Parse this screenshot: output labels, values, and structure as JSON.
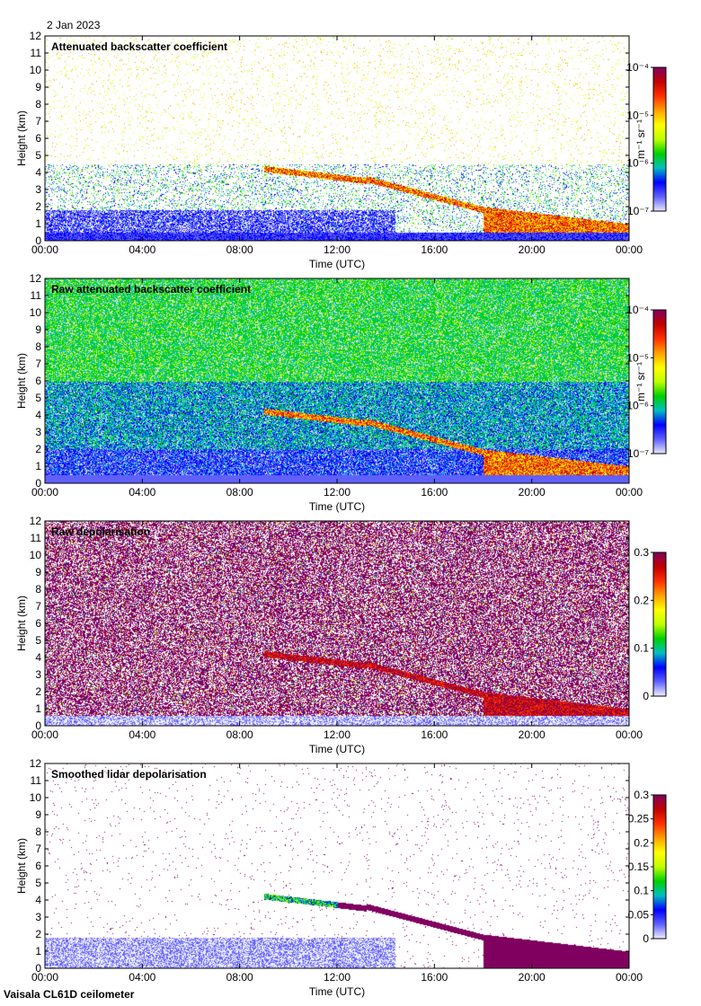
{
  "date": "2 Jan 2023",
  "footer": "Vaisala CL61D ceilometer",
  "colors": {
    "backscatter_scale": [
      "#e8e8f8",
      "#6060ff",
      "#0000ff",
      "#00c0c0",
      "#00d000",
      "#c0ff00",
      "#ffff00",
      "#ffa000",
      "#ff3000",
      "#c00000",
      "#800060"
    ],
    "depol_scale": [
      "#f0f0ff",
      "#6060ff",
      "#0000ff",
      "#00c0c0",
      "#00d000",
      "#c0ff00",
      "#ffff00",
      "#ffa000",
      "#ff3000",
      "#c00000",
      "#800060"
    ]
  },
  "chart_data": [
    {
      "type": "heatmap",
      "title": "Attenuated backscatter coefficient",
      "xlabel": "Time (UTC)",
      "ylabel": "Height (km)",
      "x_ticks": [
        "00:00",
        "04:00",
        "08:00",
        "12:00",
        "16:00",
        "20:00",
        "00:00"
      ],
      "y_ticks": [
        "0",
        "1",
        "2",
        "3",
        "4",
        "5",
        "6",
        "7",
        "8",
        "9",
        "10",
        "11",
        "12"
      ],
      "ylim": [
        0,
        12
      ],
      "colorbar": {
        "label": "m⁻¹ sr⁻¹",
        "scale": "log",
        "ticks": [
          "10⁻⁴",
          "10⁻⁵",
          "10⁻⁶",
          "10⁻⁷"
        ],
        "range": [
          1e-07,
          0.0001
        ]
      }
    },
    {
      "type": "heatmap",
      "title": "Raw attenuated backscatter coefficient",
      "xlabel": "Time (UTC)",
      "ylabel": "Height (km)",
      "x_ticks": [
        "00:00",
        "04:00",
        "08:00",
        "12:00",
        "16:00",
        "20:00",
        "00:00"
      ],
      "y_ticks": [
        "0",
        "1",
        "2",
        "3",
        "4",
        "5",
        "6",
        "7",
        "8",
        "9",
        "10",
        "11",
        "12"
      ],
      "ylim": [
        0,
        12
      ],
      "colorbar": {
        "label": "m⁻¹ sr⁻¹",
        "scale": "log",
        "ticks": [
          "10⁻⁴",
          "10⁻⁵",
          "10⁻⁶",
          "10⁻⁷"
        ],
        "range": [
          1e-07,
          0.0001
        ]
      }
    },
    {
      "type": "heatmap",
      "title": "Raw depolarisation",
      "xlabel": "Time (UTC)",
      "ylabel": "Height (km)",
      "x_ticks": [
        "00:00",
        "04:00",
        "08:00",
        "12:00",
        "16:00",
        "20:00",
        "00:00"
      ],
      "y_ticks": [
        "0",
        "1",
        "2",
        "3",
        "4",
        "5",
        "6",
        "7",
        "8",
        "9",
        "10",
        "11",
        "12"
      ],
      "ylim": [
        0,
        12
      ],
      "colorbar": {
        "label": "",
        "scale": "linear",
        "ticks": [
          "0.3",
          "0.2",
          "0.1",
          "0"
        ],
        "range": [
          0,
          0.3
        ]
      }
    },
    {
      "type": "heatmap",
      "title": "Smoothed lidar depolarisation",
      "xlabel": "Time (UTC)",
      "ylabel": "Height (km)",
      "x_ticks": [
        "00:00",
        "04:00",
        "08:00",
        "12:00",
        "16:00",
        "20:00",
        "00:00"
      ],
      "y_ticks": [
        "0",
        "1",
        "2",
        "3",
        "4",
        "5",
        "6",
        "7",
        "8",
        "9",
        "10",
        "11",
        "12"
      ],
      "ylim": [
        0,
        12
      ],
      "colorbar": {
        "label": "",
        "scale": "linear",
        "ticks": [
          "0.3",
          "0.25",
          "0.2",
          "0.15",
          "0.1",
          "0.05",
          "0"
        ],
        "range": [
          0,
          0.3
        ]
      }
    }
  ]
}
